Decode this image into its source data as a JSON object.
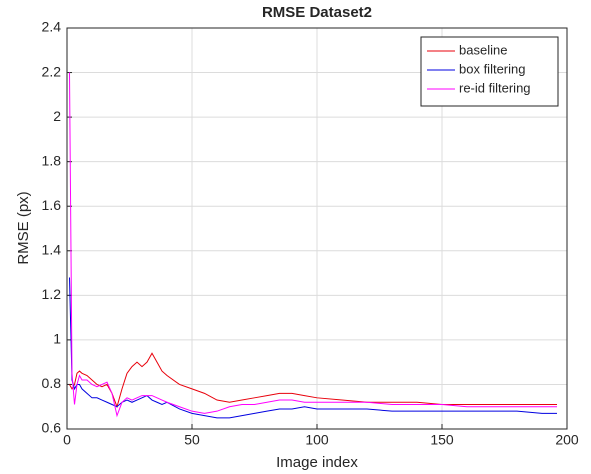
{
  "chart_data": {
    "type": "line",
    "title": "RMSE Dataset2",
    "xlabel": "Image index",
    "ylabel": "RMSE (px)",
    "x": [
      1,
      2,
      3,
      4,
      5,
      6,
      8,
      10,
      12,
      14,
      16,
      18,
      20,
      22,
      24,
      26,
      28,
      30,
      32,
      34,
      36,
      38,
      40,
      45,
      50,
      55,
      60,
      65,
      70,
      75,
      80,
      85,
      90,
      95,
      100,
      110,
      120,
      130,
      140,
      150,
      160,
      170,
      180,
      190,
      196
    ],
    "series": [
      {
        "name": "baseline",
        "color": "#e8000b",
        "values": [
          0.8,
          0.78,
          0.8,
          0.85,
          0.86,
          0.85,
          0.84,
          0.82,
          0.8,
          0.79,
          0.8,
          0.76,
          0.7,
          0.78,
          0.85,
          0.88,
          0.9,
          0.88,
          0.9,
          0.94,
          0.9,
          0.86,
          0.84,
          0.8,
          0.78,
          0.76,
          0.73,
          0.72,
          0.73,
          0.74,
          0.75,
          0.76,
          0.76,
          0.75,
          0.74,
          0.73,
          0.72,
          0.72,
          0.72,
          0.71,
          0.71,
          0.71,
          0.71,
          0.71,
          0.71
        ]
      },
      {
        "name": "box filtering",
        "color": "#0000e0",
        "values": [
          1.28,
          0.82,
          0.78,
          0.8,
          0.8,
          0.78,
          0.76,
          0.74,
          0.74,
          0.73,
          0.72,
          0.71,
          0.7,
          0.72,
          0.73,
          0.72,
          0.73,
          0.74,
          0.75,
          0.73,
          0.72,
          0.71,
          0.72,
          0.69,
          0.67,
          0.66,
          0.65,
          0.65,
          0.66,
          0.67,
          0.68,
          0.69,
          0.69,
          0.7,
          0.69,
          0.69,
          0.69,
          0.68,
          0.68,
          0.68,
          0.68,
          0.68,
          0.68,
          0.67,
          0.67
        ]
      },
      {
        "name": "re-id filtering",
        "color": "#ff00ff",
        "values": [
          2.2,
          0.85,
          0.71,
          0.8,
          0.84,
          0.82,
          0.82,
          0.8,
          0.79,
          0.8,
          0.81,
          0.76,
          0.66,
          0.72,
          0.74,
          0.73,
          0.74,
          0.75,
          0.75,
          0.75,
          0.74,
          0.73,
          0.72,
          0.7,
          0.68,
          0.67,
          0.68,
          0.7,
          0.71,
          0.71,
          0.72,
          0.73,
          0.73,
          0.72,
          0.72,
          0.72,
          0.72,
          0.71,
          0.71,
          0.71,
          0.7,
          0.7,
          0.7,
          0.7,
          0.7
        ]
      }
    ],
    "xlim": [
      0,
      200
    ],
    "xticks": [
      0,
      50,
      100,
      150,
      200
    ],
    "ylim": [
      0.6,
      2.4
    ],
    "yticks": [
      0.6,
      0.8,
      1,
      1.2,
      1.4,
      1.6,
      1.8,
      2,
      2.2,
      2.4
    ],
    "grid": true,
    "legend": "northeast"
  }
}
